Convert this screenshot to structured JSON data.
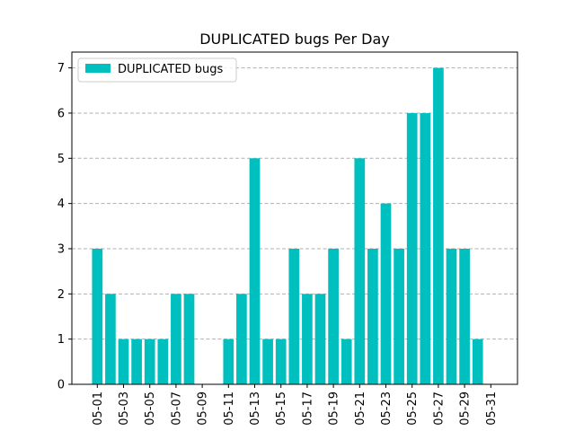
{
  "chart_data": {
    "type": "bar",
    "title": "DUPLICATED bugs Per Day",
    "xlabel": "",
    "ylabel": "",
    "categories": [
      "05-01",
      "05-02",
      "05-03",
      "05-04",
      "05-05",
      "05-06",
      "05-07",
      "05-08",
      "05-09",
      "05-10",
      "05-11",
      "05-12",
      "05-13",
      "05-14",
      "05-15",
      "05-16",
      "05-17",
      "05-18",
      "05-19",
      "05-20",
      "05-21",
      "05-22",
      "05-23",
      "05-24",
      "05-25",
      "05-26",
      "05-27",
      "05-28",
      "05-29",
      "05-30",
      "05-31"
    ],
    "x_tick_labels": [
      "05-01",
      "05-03",
      "05-05",
      "05-07",
      "05-09",
      "05-11",
      "05-13",
      "05-15",
      "05-17",
      "05-19",
      "05-21",
      "05-23",
      "05-25",
      "05-27",
      "05-29",
      "05-31"
    ],
    "series": [
      {
        "name": "DUPLICATED bugs",
        "color": "#00bfbf",
        "values": [
          3,
          2,
          1,
          1,
          1,
          1,
          2,
          2,
          0,
          0,
          1,
          2,
          5,
          1,
          1,
          3,
          2,
          2,
          3,
          1,
          5,
          3,
          4,
          3,
          6,
          6,
          7,
          3,
          3,
          1,
          0
        ]
      }
    ],
    "ylim": [
      0,
      7.35
    ],
    "y_ticks": [
      0,
      1,
      2,
      3,
      4,
      5,
      6,
      7
    ],
    "grid": "y-dashed",
    "legend_position": "top-left"
  }
}
